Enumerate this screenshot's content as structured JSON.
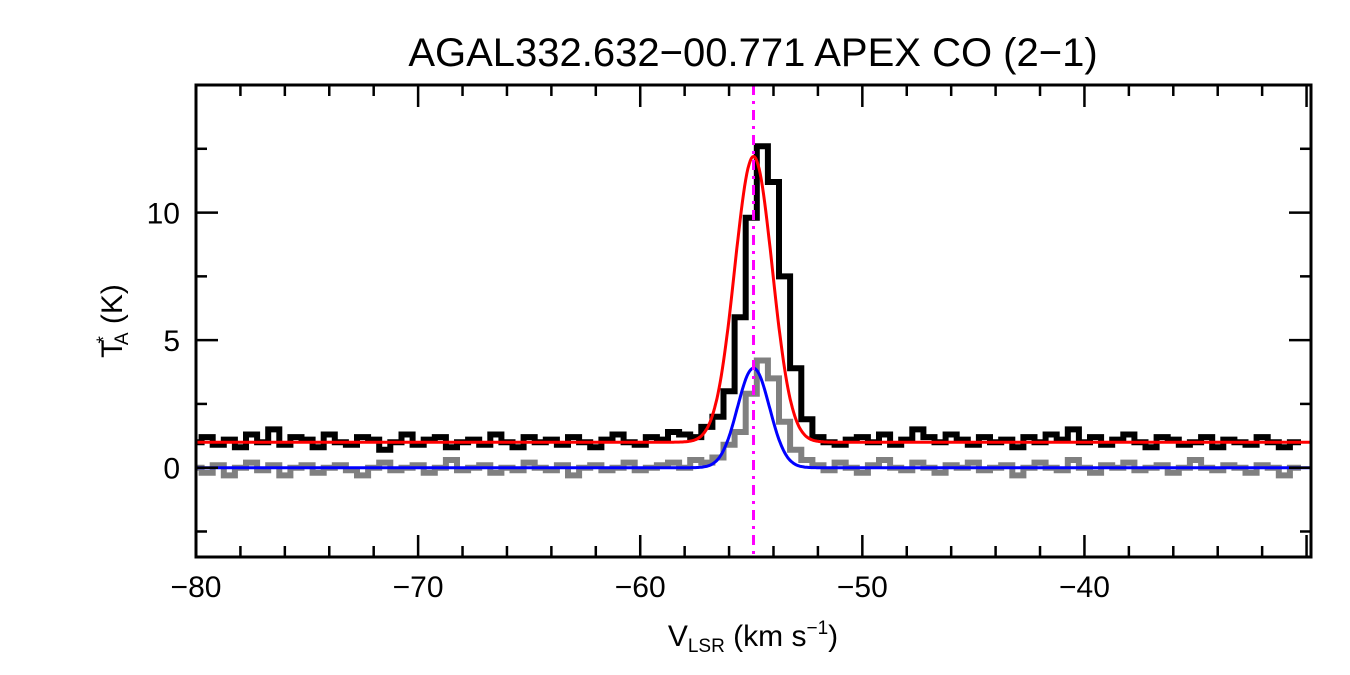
{
  "chart_data": {
    "type": "line",
    "title": "AGAL332.632−00.771  APEX CO (2−1)",
    "xlabel": {
      "main": "V",
      "sub": "LSR",
      "rest": " (km s",
      "sup": "−1",
      "end": ")"
    },
    "ylabel": {
      "main": "T",
      "sup": "*",
      "sub": "A",
      "rest": " (K)"
    },
    "xlim": [
      -80,
      -29.8
    ],
    "ylim": [
      -3.5,
      15
    ],
    "xticks": [
      -80,
      -70,
      -60,
      -50,
      -40
    ],
    "xtick_labels": [
      "−80",
      "−70",
      "−60",
      "−50",
      "−40"
    ],
    "yticks": [
      0,
      5,
      10
    ],
    "ytick_labels": [
      "0",
      "5",
      "10"
    ],
    "grid": false,
    "x_start": -80,
    "x_step": 0.5,
    "series": [
      {
        "style": "histogram",
        "color": "#000000",
        "values": [
          1.0,
          1.2,
          0.9,
          1.1,
          0.8,
          1.3,
          1.0,
          1.5,
          0.9,
          1.2,
          1.1,
          0.8,
          1.3,
          1.0,
          0.9,
          1.2,
          1.1,
          0.7,
          1.0,
          1.3,
          0.9,
          1.1,
          1.2,
          0.8,
          1.0,
          1.1,
          0.9,
          1.3,
          1.0,
          0.8,
          1.2,
          1.0,
          1.1,
          0.9,
          1.2,
          1.0,
          0.8,
          1.1,
          1.3,
          1.0,
          0.9,
          1.2,
          1.1,
          1.4,
          1.3,
          1.2,
          1.6,
          2.0,
          3.0,
          5.9,
          9.8,
          12.6,
          11.2,
          7.5,
          3.9,
          1.9,
          1.2,
          1.0,
          0.9,
          1.1,
          1.2,
          1.0,
          1.3,
          0.9,
          1.1,
          1.5,
          1.2,
          1.0,
          1.3,
          1.1,
          0.9,
          1.2,
          1.0,
          1.1,
          0.8,
          1.2,
          1.0,
          1.3,
          1.1,
          1.5,
          1.0,
          1.2,
          0.9,
          1.1,
          1.3,
          1.0,
          0.8,
          1.2,
          1.1,
          0.9,
          1.0,
          1.2,
          0.8,
          1.1,
          1.0,
          0.9,
          1.2,
          1.0,
          0.8,
          1.0
        ]
      },
      {
        "style": "histogram",
        "color": "#808080",
        "values": [
          0.0,
          -0.2,
          0.1,
          -0.3,
          0.0,
          0.2,
          -0.1,
          0.1,
          -0.3,
          0.0,
          0.1,
          -0.2,
          0.0,
          0.1,
          -0.1,
          -0.3,
          0.0,
          0.2,
          -0.1,
          0.0,
          0.1,
          -0.2,
          0.0,
          0.3,
          -0.1,
          0.0,
          0.1,
          -0.2,
          0.0,
          -0.1,
          0.2,
          0.0,
          -0.1,
          0.1,
          -0.3,
          0.0,
          0.1,
          -0.1,
          0.0,
          0.2,
          -0.1,
          0.0,
          0.1,
          0.2,
          0.0,
          0.3,
          0.2,
          0.4,
          0.9,
          1.4,
          2.9,
          4.2,
          3.5,
          1.8,
          0.7,
          0.3,
          0.1,
          -0.1,
          0.2,
          0.0,
          -0.2,
          0.1,
          0.3,
          0.0,
          -0.1,
          0.2,
          0.0,
          -0.2,
          0.1,
          0.0,
          0.2,
          -0.1,
          0.0,
          0.1,
          -0.3,
          0.0,
          0.2,
          0.0,
          -0.1,
          0.3,
          0.0,
          -0.2,
          0.1,
          0.0,
          0.2,
          -0.1,
          0.0,
          0.1,
          -0.2,
          0.0,
          0.3,
          0.0,
          -0.1,
          0.1,
          0.0,
          -0.2,
          0.1,
          0.0,
          -0.3,
          0.0
        ]
      }
    ],
    "fits": [
      {
        "color": "#ff0000",
        "baseline": 1.0,
        "amplitude": 11.2,
        "center": -54.9,
        "fwhm": 2.0
      },
      {
        "color": "#0000ff",
        "baseline": 0.0,
        "amplitude": 3.9,
        "center": -54.9,
        "fwhm": 1.7
      }
    ],
    "vline": {
      "x": -54.9,
      "color": "#ff00ff",
      "style": "dash-dot"
    }
  }
}
